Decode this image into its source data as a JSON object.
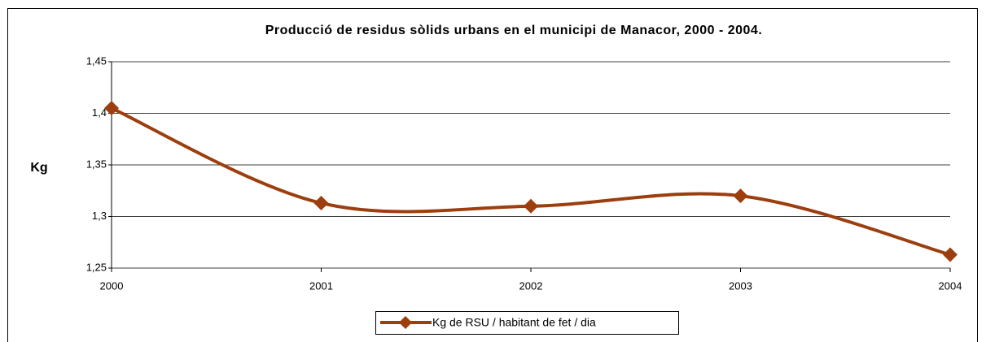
{
  "chart_data": {
    "type": "line",
    "title": "Producció de residus sòlids urbans en el municipi de Manacor, 2000 - 2004.",
    "ylabel": "Kg",
    "categories": [
      "2000",
      "2001",
      "2002",
      "2003",
      "2004"
    ],
    "series": [
      {
        "name": "Kg de RSU / habitant de fet / dia",
        "color": "#9c3e0e",
        "values": [
          1.405,
          1.313,
          1.31,
          1.32,
          1.263
        ]
      }
    ],
    "ylim": [
      1.25,
      1.45
    ],
    "yticks": [
      {
        "value": 1.25,
        "label": "1,25"
      },
      {
        "value": 1.3,
        "label": "1,3"
      },
      {
        "value": 1.35,
        "label": "1,35"
      },
      {
        "value": 1.4,
        "label": "1,4"
      },
      {
        "value": 1.45,
        "label": "1,45"
      }
    ],
    "grid": true,
    "legend": "bottom"
  }
}
